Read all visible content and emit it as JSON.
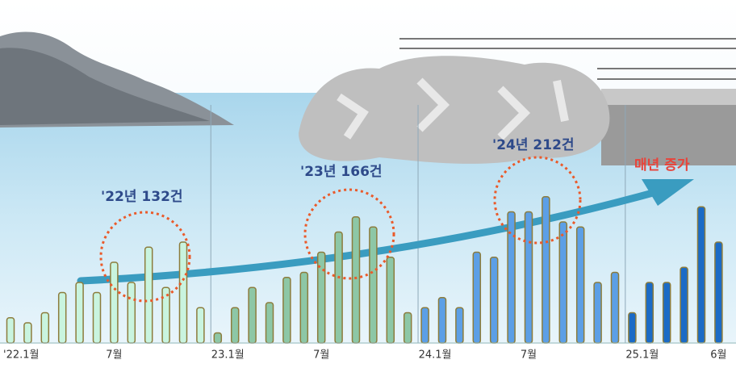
{
  "chart_data": {
    "type": "bar",
    "categories": [
      "'22.1월",
      null,
      null,
      null,
      null,
      null,
      "7월",
      null,
      null,
      null,
      null,
      null,
      "23.1월",
      null,
      null,
      null,
      null,
      null,
      "7월",
      null,
      null,
      null,
      null,
      null,
      "24.1월",
      null,
      null,
      null,
      null,
      null,
      "7월",
      null,
      null,
      null,
      null,
      null,
      "25.1월",
      null,
      null,
      null,
      null,
      "6월"
    ],
    "series": [
      {
        "color": "#c9f4df",
        "values": [
          5,
          4,
          6,
          10,
          12,
          10,
          16,
          12,
          19,
          11,
          20,
          7,
          null,
          null,
          null,
          null,
          null,
          null,
          null,
          null,
          null,
          null,
          null,
          null,
          null,
          null,
          null,
          null,
          null,
          null,
          null,
          null,
          null,
          null,
          null,
          null,
          null,
          null,
          null,
          null,
          null,
          null
        ]
      },
      {
        "color": "#8dc7a6",
        "values": [
          null,
          null,
          null,
          null,
          null,
          null,
          null,
          null,
          null,
          null,
          null,
          null,
          2,
          7,
          11,
          8,
          13,
          14,
          18,
          22,
          25,
          23,
          17,
          6,
          null,
          null,
          null,
          null,
          null,
          null,
          null,
          null,
          null,
          null,
          null,
          null,
          null,
          null,
          null,
          null,
          null,
          null
        ]
      },
      {
        "color": "#5c9fe6",
        "values": [
          null,
          null,
          null,
          null,
          null,
          null,
          null,
          null,
          null,
          null,
          null,
          null,
          null,
          null,
          null,
          null,
          null,
          null,
          null,
          null,
          null,
          null,
          null,
          null,
          7,
          9,
          7,
          18,
          17,
          26,
          26,
          29,
          24,
          23,
          12,
          14,
          null,
          null,
          null,
          null,
          null,
          null
        ]
      },
      {
        "color": "#1b6bc6",
        "values": [
          null,
          null,
          null,
          null,
          null,
          null,
          null,
          null,
          null,
          null,
          null,
          null,
          null,
          null,
          null,
          null,
          null,
          null,
          null,
          null,
          null,
          null,
          null,
          null,
          null,
          null,
          null,
          null,
          null,
          null,
          null,
          null,
          null,
          null,
          null,
          null,
          6,
          12,
          12,
          15,
          27,
          20
        ]
      }
    ],
    "annotations": [
      "'22년 132건",
      "'23년 166건",
      "'24년 212건",
      "매년 증가"
    ]
  }
}
